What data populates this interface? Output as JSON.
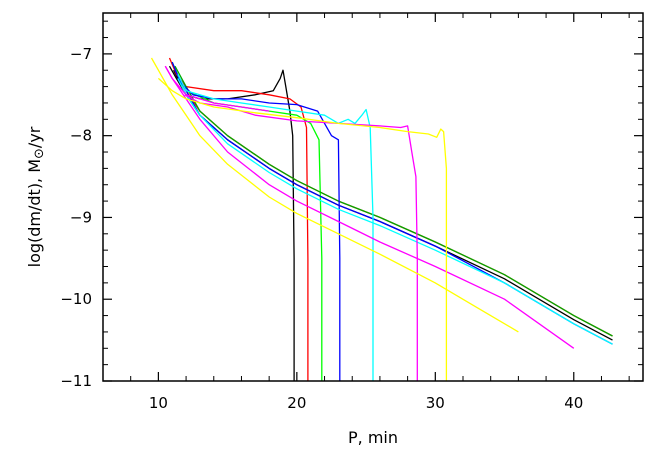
{
  "chart_data": {
    "type": "line",
    "xlabel": "P, min",
    "ylabel_prefix": "log(dm/dt), M",
    "ylabel_symbol": "⊙",
    "ylabel_suffix": "/yr",
    "xlim": [
      6,
      45
    ],
    "ylim": [
      -11,
      -6.5
    ],
    "xticks": [
      10,
      20,
      30,
      40
    ],
    "yticks": [
      -7,
      -8,
      -9,
      -10,
      -11
    ],
    "grid": false,
    "legend": "none",
    "series": [
      {
        "color": "#000000",
        "points": [
          [
            10.8,
            -7.15
          ],
          [
            11.3,
            -7.3
          ],
          [
            12,
            -7.5
          ],
          [
            13,
            -7.55
          ],
          [
            15,
            -7.55
          ],
          [
            17,
            -7.5
          ],
          [
            18.3,
            -7.45
          ],
          [
            18.8,
            -7.3
          ],
          [
            19,
            -7.2
          ],
          [
            19.2,
            -7.4
          ],
          [
            19.5,
            -7.7
          ],
          [
            19.7,
            -8.0
          ],
          [
            19.8,
            -9.5
          ],
          [
            19.8,
            -11.0
          ]
        ]
      },
      {
        "color": "#000000",
        "points": [
          [
            11.1,
            -7.2
          ],
          [
            12,
            -7.5
          ],
          [
            13,
            -7.75
          ],
          [
            15,
            -8.05
          ],
          [
            18,
            -8.4
          ],
          [
            20,
            -8.6
          ],
          [
            23,
            -8.85
          ],
          [
            26,
            -9.05
          ],
          [
            30,
            -9.35
          ],
          [
            35,
            -9.75
          ],
          [
            40,
            -10.25
          ],
          [
            42.8,
            -10.5
          ]
        ]
      },
      {
        "color": "#ff0000",
        "points": [
          [
            10.8,
            -7.05
          ],
          [
            11.3,
            -7.25
          ],
          [
            12,
            -7.4
          ],
          [
            14,
            -7.45
          ],
          [
            16,
            -7.45
          ],
          [
            18,
            -7.5
          ],
          [
            19.5,
            -7.55
          ],
          [
            20.3,
            -7.65
          ],
          [
            20.7,
            -7.9
          ],
          [
            20.8,
            -9.5
          ],
          [
            20.8,
            -11.0
          ]
        ]
      },
      {
        "color": "#ff0000",
        "points": [
          [
            11.2,
            -7.2
          ],
          [
            12,
            -7.45
          ],
          [
            13,
            -7.7
          ],
          [
            15,
            -8.0
          ],
          [
            18,
            -8.35
          ],
          [
            20,
            -8.55
          ],
          [
            23,
            -8.8
          ],
          [
            26,
            -9.0
          ],
          [
            30,
            -9.3
          ],
          [
            35,
            -9.7
          ],
          [
            40,
            -10.2
          ],
          [
            42.8,
            -10.45
          ]
        ]
      },
      {
        "color": "#00ff00",
        "points": [
          [
            11,
            -7.1
          ],
          [
            11.5,
            -7.3
          ],
          [
            12,
            -7.45
          ],
          [
            14,
            -7.6
          ],
          [
            16,
            -7.65
          ],
          [
            18,
            -7.7
          ],
          [
            20,
            -7.75
          ],
          [
            21,
            -7.85
          ],
          [
            21.6,
            -8.05
          ],
          [
            21.8,
            -9.5
          ],
          [
            21.8,
            -11.0
          ]
        ]
      },
      {
        "color": "#00aa00",
        "points": [
          [
            11.2,
            -7.15
          ],
          [
            12,
            -7.4
          ],
          [
            13,
            -7.7
          ],
          [
            15,
            -8.0
          ],
          [
            18,
            -8.35
          ],
          [
            20,
            -8.55
          ],
          [
            23,
            -8.8
          ],
          [
            26,
            -9.0
          ],
          [
            30,
            -9.3
          ],
          [
            35,
            -9.7
          ],
          [
            40,
            -10.2
          ],
          [
            42.8,
            -10.45
          ]
        ]
      },
      {
        "color": "#0000ff",
        "points": [
          [
            11,
            -7.1
          ],
          [
            11.6,
            -7.35
          ],
          [
            12.5,
            -7.5
          ],
          [
            14,
            -7.55
          ],
          [
            16,
            -7.55
          ],
          [
            18,
            -7.6
          ],
          [
            20,
            -7.62
          ],
          [
            21.5,
            -7.7
          ],
          [
            22.5,
            -8.0
          ],
          [
            23,
            -8.05
          ],
          [
            23.1,
            -9.5
          ],
          [
            23.1,
            -11.0
          ]
        ]
      },
      {
        "color": "#0000ff",
        "points": [
          [
            11.2,
            -7.2
          ],
          [
            12,
            -7.45
          ],
          [
            13,
            -7.75
          ],
          [
            15,
            -8.05
          ],
          [
            18,
            -8.4
          ],
          [
            20,
            -8.6
          ],
          [
            23,
            -8.85
          ],
          [
            26,
            -9.05
          ],
          [
            30,
            -9.35
          ],
          [
            35,
            -9.8
          ],
          [
            40,
            -10.3
          ],
          [
            42.8,
            -10.55
          ]
        ]
      },
      {
        "color": "#00ffff",
        "points": [
          [
            11.4,
            -7.25
          ],
          [
            12,
            -7.45
          ],
          [
            14,
            -7.55
          ],
          [
            16,
            -7.6
          ],
          [
            18,
            -7.65
          ],
          [
            20,
            -7.7
          ],
          [
            22,
            -7.75
          ],
          [
            23,
            -7.85
          ],
          [
            23.7,
            -7.8
          ],
          [
            24.2,
            -7.85
          ],
          [
            24.7,
            -7.75
          ],
          [
            25,
            -7.68
          ],
          [
            25.3,
            -7.9
          ],
          [
            25.5,
            -9.0
          ],
          [
            25.5,
            -11.0
          ]
        ]
      },
      {
        "color": "#00ffff",
        "points": [
          [
            11.4,
            -7.3
          ],
          [
            12,
            -7.5
          ],
          [
            13,
            -7.75
          ],
          [
            15,
            -8.1
          ],
          [
            18,
            -8.45
          ],
          [
            20,
            -8.65
          ],
          [
            23,
            -8.9
          ],
          [
            26,
            -9.1
          ],
          [
            30,
            -9.4
          ],
          [
            35,
            -9.8
          ],
          [
            40,
            -10.3
          ],
          [
            42.8,
            -10.55
          ]
        ]
      },
      {
        "color": "#ff00ff",
        "points": [
          [
            11.9,
            -7.5
          ],
          [
            13,
            -7.6
          ],
          [
            15,
            -7.65
          ],
          [
            17,
            -7.75
          ],
          [
            20,
            -7.82
          ],
          [
            23,
            -7.85
          ],
          [
            26,
            -7.88
          ],
          [
            27.5,
            -7.9
          ],
          [
            28,
            -7.88
          ],
          [
            28.3,
            -8.2
          ],
          [
            28.6,
            -8.5
          ],
          [
            28.7,
            -9.5
          ],
          [
            28.7,
            -11.0
          ]
        ]
      },
      {
        "color": "#ff00ff",
        "points": [
          [
            10.5,
            -7.15
          ],
          [
            11,
            -7.3
          ],
          [
            12,
            -7.55
          ],
          [
            13,
            -7.8
          ],
          [
            15,
            -8.2
          ],
          [
            18,
            -8.6
          ],
          [
            20,
            -8.8
          ],
          [
            23,
            -9.05
          ],
          [
            26,
            -9.3
          ],
          [
            30,
            -9.6
          ],
          [
            35,
            -10.0
          ],
          [
            40,
            -10.6
          ]
        ]
      },
      {
        "color": "#ff00ff",
        "points": [
          [
            10.5,
            -7.15
          ],
          [
            11,
            -7.3
          ],
          [
            12,
            -7.5
          ],
          [
            14,
            -7.6
          ],
          [
            16,
            -7.65
          ],
          [
            18,
            -7.7
          ]
        ]
      },
      {
        "color": "#ffff00",
        "points": [
          [
            10,
            -7.3
          ],
          [
            11,
            -7.45
          ],
          [
            12,
            -7.55
          ],
          [
            14,
            -7.65
          ],
          [
            17,
            -7.72
          ],
          [
            20,
            -7.78
          ],
          [
            23,
            -7.85
          ],
          [
            26,
            -7.9
          ],
          [
            28,
            -7.95
          ],
          [
            29.5,
            -7.98
          ],
          [
            30.1,
            -8.02
          ],
          [
            30.4,
            -7.92
          ],
          [
            30.6,
            -7.95
          ],
          [
            30.8,
            -8.4
          ],
          [
            30.8,
            -11.0
          ]
        ]
      },
      {
        "color": "#ffff00",
        "points": [
          [
            9.5,
            -7.05
          ],
          [
            10,
            -7.2
          ],
          [
            11,
            -7.5
          ],
          [
            12,
            -7.75
          ],
          [
            13,
            -8.0
          ],
          [
            15,
            -8.35
          ],
          [
            18,
            -8.75
          ],
          [
            20,
            -8.95
          ],
          [
            23,
            -9.2
          ],
          [
            26,
            -9.45
          ],
          [
            30,
            -9.8
          ],
          [
            33,
            -10.1
          ],
          [
            36,
            -10.4
          ]
        ]
      }
    ]
  }
}
